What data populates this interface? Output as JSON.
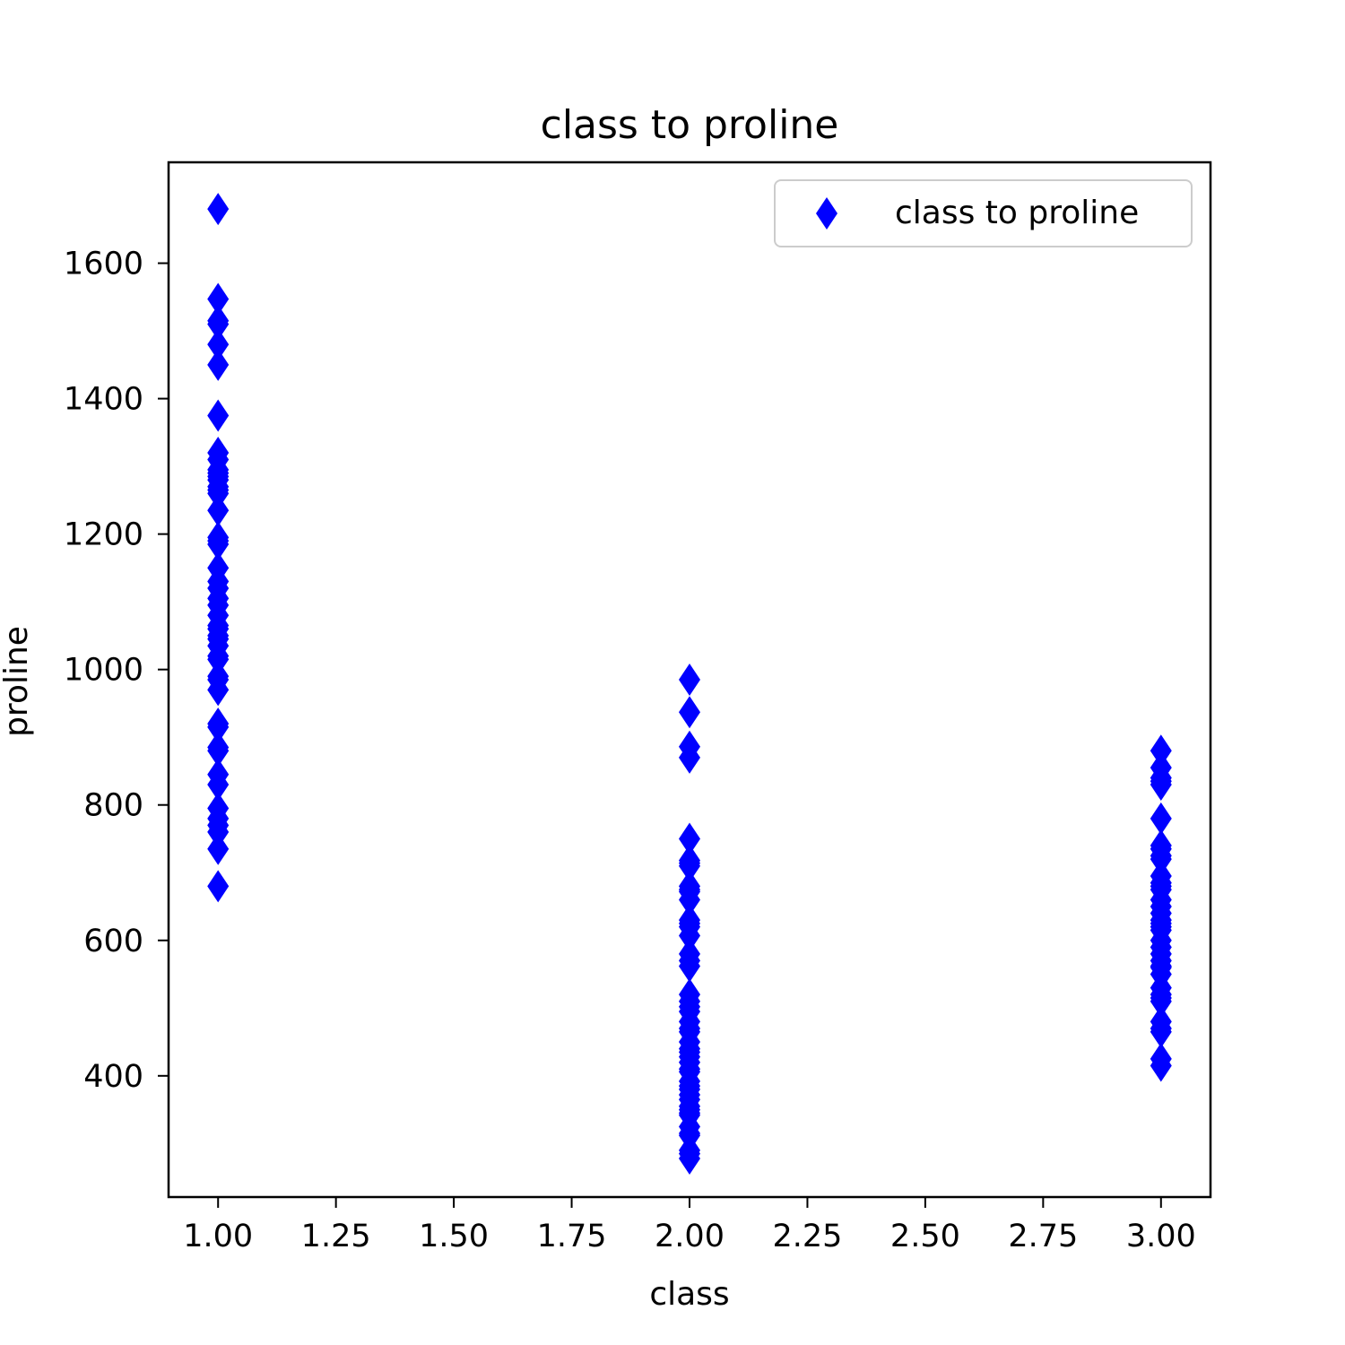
{
  "chart_data": {
    "type": "scatter",
    "title": "class to proline",
    "xlabel": "class",
    "ylabel": "proline",
    "xlim": [
      0.895,
      3.105
    ],
    "ylim": [
      221,
      1749
    ],
    "xticks": [
      1.0,
      1.25,
      1.5,
      1.75,
      2.0,
      2.25,
      2.5,
      2.75,
      3.0
    ],
    "xtick_labels": [
      "1.00",
      "1.25",
      "1.50",
      "1.75",
      "2.00",
      "2.25",
      "2.50",
      "2.75",
      "3.00"
    ],
    "yticks": [
      400,
      600,
      800,
      1000,
      1200,
      1400,
      1600
    ],
    "ytick_labels": [
      "400",
      "600",
      "800",
      "1000",
      "1200",
      "1400",
      "1600"
    ],
    "grid": false,
    "legend_position": "top-right",
    "marker": "diamond",
    "color": "#0000ff",
    "series": [
      {
        "name": "class to proline",
        "points": [
          [
            1,
            1680
          ],
          [
            1,
            1547
          ],
          [
            1,
            1515
          ],
          [
            1,
            1510
          ],
          [
            1,
            1480
          ],
          [
            1,
            1450
          ],
          [
            1,
            1375
          ],
          [
            1,
            1320
          ],
          [
            1,
            1310
          ],
          [
            1,
            1295
          ],
          [
            1,
            1290
          ],
          [
            1,
            1285
          ],
          [
            1,
            1280
          ],
          [
            1,
            1270
          ],
          [
            1,
            1265
          ],
          [
            1,
            1260
          ],
          [
            1,
            1235
          ],
          [
            1,
            1195
          ],
          [
            1,
            1190
          ],
          [
            1,
            1185
          ],
          [
            1,
            1150
          ],
          [
            1,
            1130
          ],
          [
            1,
            1120
          ],
          [
            1,
            1105
          ],
          [
            1,
            1095
          ],
          [
            1,
            1080
          ],
          [
            1,
            1065
          ],
          [
            1,
            1060
          ],
          [
            1,
            1050
          ],
          [
            1,
            1045
          ],
          [
            1,
            1035
          ],
          [
            1,
            1020
          ],
          [
            1,
            1015
          ],
          [
            1,
            990
          ],
          [
            1,
            985
          ],
          [
            1,
            970
          ],
          [
            1,
            920
          ],
          [
            1,
            915
          ],
          [
            1,
            885
          ],
          [
            1,
            880
          ],
          [
            1,
            845
          ],
          [
            1,
            830
          ],
          [
            1,
            795
          ],
          [
            1,
            780
          ],
          [
            1,
            770
          ],
          [
            1,
            760
          ],
          [
            1,
            735
          ],
          [
            1,
            680
          ],
          [
            2,
            985
          ],
          [
            2,
            937
          ],
          [
            2,
            886
          ],
          [
            2,
            870
          ],
          [
            2,
            750
          ],
          [
            2,
            718
          ],
          [
            2,
            714
          ],
          [
            2,
            710
          ],
          [
            2,
            680
          ],
          [
            2,
            675
          ],
          [
            2,
            672
          ],
          [
            2,
            660
          ],
          [
            2,
            630
          ],
          [
            2,
            625
          ],
          [
            2,
            620
          ],
          [
            2,
            607
          ],
          [
            2,
            580
          ],
          [
            2,
            570
          ],
          [
            2,
            562
          ],
          [
            2,
            520
          ],
          [
            2,
            510
          ],
          [
            2,
            502
          ],
          [
            2,
            495
          ],
          [
            2,
            480
          ],
          [
            2,
            470
          ],
          [
            2,
            465
          ],
          [
            2,
            450
          ],
          [
            2,
            440
          ],
          [
            2,
            435
          ],
          [
            2,
            428
          ],
          [
            2,
            420
          ],
          [
            2,
            410
          ],
          [
            2,
            406
          ],
          [
            2,
            392
          ],
          [
            2,
            385
          ],
          [
            2,
            380
          ],
          [
            2,
            372
          ],
          [
            2,
            365
          ],
          [
            2,
            355
          ],
          [
            2,
            350
          ],
          [
            2,
            345
          ],
          [
            2,
            342
          ],
          [
            2,
            325
          ],
          [
            2,
            315
          ],
          [
            2,
            312
          ],
          [
            2,
            290
          ],
          [
            2,
            285
          ],
          [
            2,
            278
          ],
          [
            3,
            880
          ],
          [
            3,
            855
          ],
          [
            3,
            840
          ],
          [
            3,
            835
          ],
          [
            3,
            830
          ],
          [
            3,
            780
          ],
          [
            3,
            740
          ],
          [
            3,
            735
          ],
          [
            3,
            725
          ],
          [
            3,
            720
          ],
          [
            3,
            695
          ],
          [
            3,
            685
          ],
          [
            3,
            680
          ],
          [
            3,
            675
          ],
          [
            3,
            660
          ],
          [
            3,
            650
          ],
          [
            3,
            640
          ],
          [
            3,
            630
          ],
          [
            3,
            625
          ],
          [
            3,
            620
          ],
          [
            3,
            615
          ],
          [
            3,
            600
          ],
          [
            3,
            590
          ],
          [
            3,
            580
          ],
          [
            3,
            570
          ],
          [
            3,
            562
          ],
          [
            3,
            560
          ],
          [
            3,
            550
          ],
          [
            3,
            530
          ],
          [
            3,
            520
          ],
          [
            3,
            515
          ],
          [
            3,
            510
          ],
          [
            3,
            480
          ],
          [
            3,
            470
          ],
          [
            3,
            465
          ],
          [
            3,
            425
          ],
          [
            3,
            415
          ]
        ]
      }
    ]
  }
}
